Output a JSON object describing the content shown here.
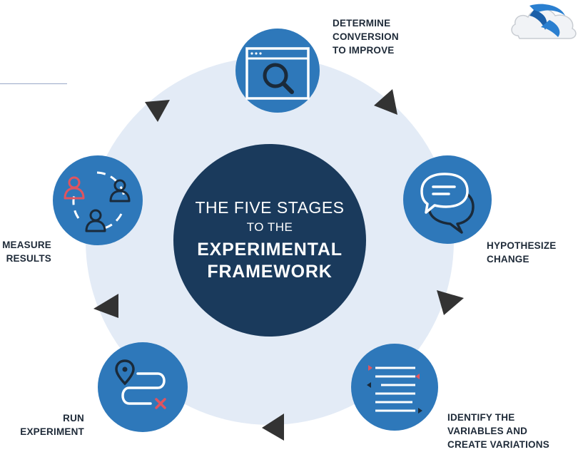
{
  "center": {
    "line1": "THE FIVE STAGES",
    "line2": "TO THE",
    "line3": "EXPERIMENTAL",
    "line4": "FRAMEWORK"
  },
  "stages": [
    {
      "icon": "browser-search-icon",
      "lines": [
        "DETERMINE",
        "CONVERSION",
        "TO IMPROVE"
      ]
    },
    {
      "icon": "speech-bubbles-icon",
      "lines": [
        "HYPOTHESIZE",
        "CHANGE"
      ]
    },
    {
      "icon": "variables-list-icon",
      "lines": [
        "IDENTIFY THE",
        "VARIABLES AND",
        "CREATE VARIATIONS"
      ]
    },
    {
      "icon": "route-path-icon",
      "lines": [
        "RUN",
        "EXPERIMENT"
      ]
    },
    {
      "icon": "people-cycle-icon",
      "lines": [
        "MEASURE",
        "RESULTS"
      ]
    }
  ],
  "colors": {
    "ring": "#e3ebf6",
    "center": "#1a3a5c",
    "stage": "#2e78ba",
    "accent_red": "#e0545f",
    "arrow": "#333333"
  },
  "logo_icon": "cloud-logo-icon"
}
